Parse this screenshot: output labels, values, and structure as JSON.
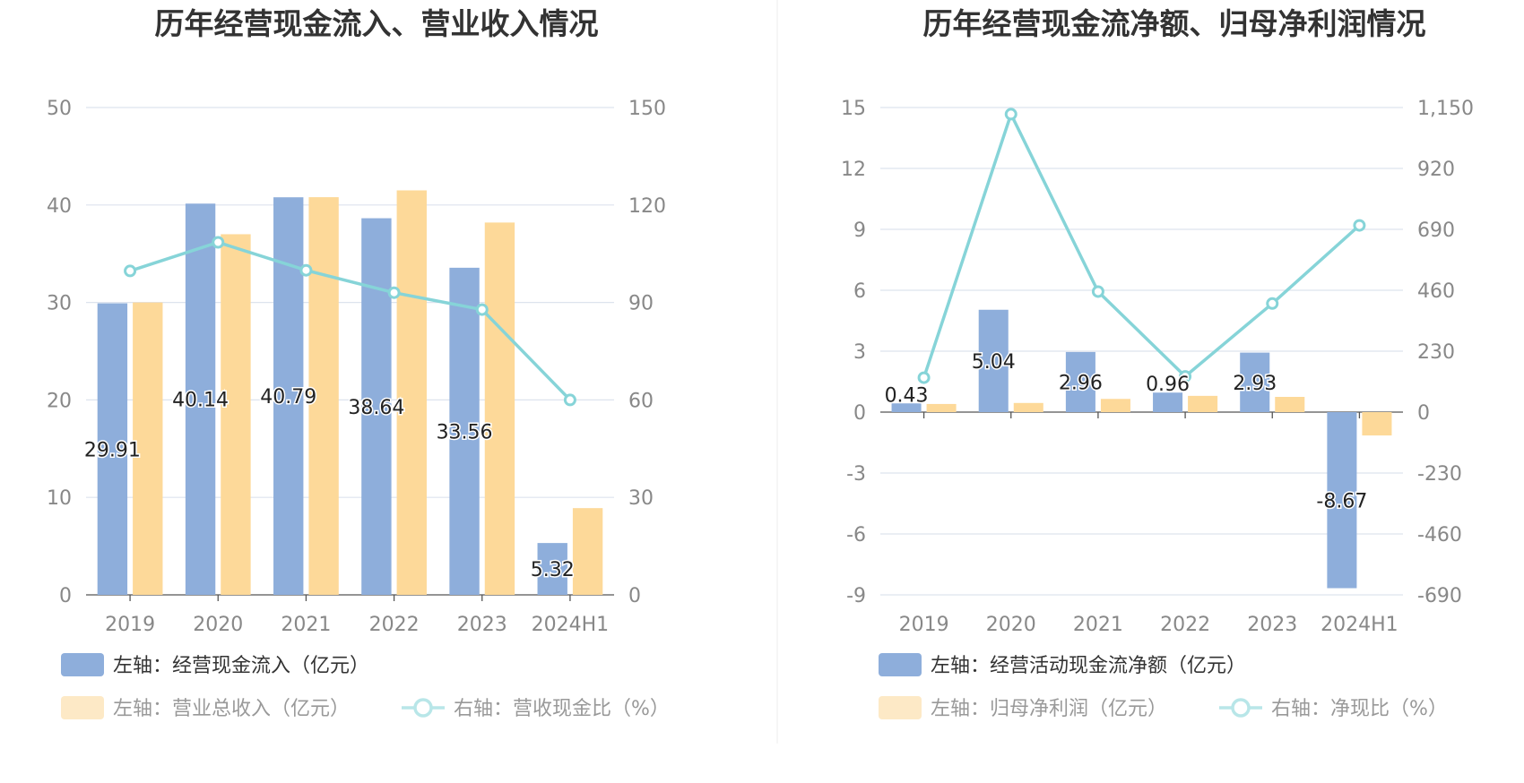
{
  "colors": {
    "bar1": "#8eaedb",
    "bar2": "#fdd999",
    "line": "#86d4d8",
    "grid": "#dde3ee",
    "axis": "#555555",
    "legend_active": "#333333",
    "legend_inactive": "#999999",
    "legend_bar2_inactive": "#fde9c6",
    "legend_line_inactive": "#b8e6e8"
  },
  "chart_data": [
    {
      "type": "bar",
      "title": "历年经营现金流入、营业收入情况",
      "categories": [
        "2019",
        "2020",
        "2021",
        "2022",
        "2023",
        "2024H1"
      ],
      "left_axis": {
        "min": 0,
        "max": 50,
        "ticks": [
          "0",
          "10",
          "20",
          "30",
          "40",
          "50"
        ]
      },
      "right_axis": {
        "min": 0,
        "max": 150,
        "ticks": [
          "0",
          "30",
          "60",
          "90",
          "120",
          "150"
        ]
      },
      "grid": true,
      "legend_position": "bottom",
      "series": [
        {
          "name": "左轴：经营现金流入（亿元）",
          "kind": "bar",
          "axis": "left",
          "values": [
            29.91,
            40.14,
            40.79,
            38.64,
            33.56,
            5.32
          ],
          "labels": [
            "29.91",
            "40.14",
            "40.79",
            "38.64",
            "33.56",
            "5.32"
          ],
          "legend_active": true
        },
        {
          "name": "左轴：营业总收入（亿元）",
          "kind": "bar",
          "axis": "left",
          "values": [
            30.0,
            37.0,
            40.8,
            41.5,
            38.2,
            8.9
          ],
          "legend_active": false
        },
        {
          "name": "右轴：营收现金比（%）",
          "kind": "line",
          "axis": "right",
          "values": [
            99.7,
            108.5,
            99.9,
            93.0,
            87.8,
            60.0
          ],
          "legend_active": false
        }
      ]
    },
    {
      "type": "bar",
      "title": "历年经营现金流净额、归母净利润情况",
      "categories": [
        "2019",
        "2020",
        "2021",
        "2022",
        "2023",
        "2024H1"
      ],
      "left_axis": {
        "min": -9,
        "max": 15,
        "ticks": [
          "-9",
          "-6",
          "-3",
          "0",
          "3",
          "6",
          "9",
          "12",
          "15"
        ]
      },
      "right_axis": {
        "min": -690,
        "max": 1150,
        "ticks": [
          "-690",
          "-460",
          "-230",
          "0",
          "230",
          "460",
          "690",
          "920",
          "1,150"
        ]
      },
      "grid": true,
      "legend_position": "bottom",
      "series": [
        {
          "name": "左轴：经营活动现金流净额（亿元）",
          "kind": "bar",
          "axis": "left",
          "values": [
            0.43,
            5.04,
            2.96,
            0.96,
            2.93,
            -8.67
          ],
          "labels": [
            "0.43",
            "5.04",
            "2.96",
            "0.96",
            "2.93",
            "-8.67"
          ],
          "legend_active": true
        },
        {
          "name": "左轴：归母净利润（亿元）",
          "kind": "bar",
          "axis": "left",
          "values": [
            0.4,
            0.45,
            0.65,
            0.8,
            0.75,
            -1.15
          ],
          "legend_active": false
        },
        {
          "name": "右轴：净现比（%）",
          "kind": "line",
          "axis": "right",
          "values": [
            130,
            1125,
            455,
            135,
            410,
            705
          ],
          "legend_active": false
        }
      ]
    }
  ]
}
